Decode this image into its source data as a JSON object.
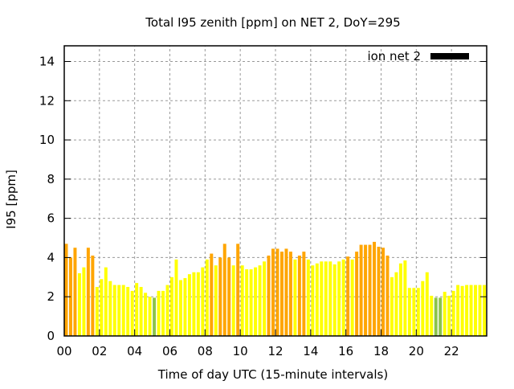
{
  "chart_data": {
    "type": "bar",
    "title": "Total I95 zenith [ppm] on NET 2, DoY=295",
    "xlabel": "Time of day UTC (15-minute intervals)",
    "ylabel": "I95 [ppm]",
    "xlim": [
      0,
      24
    ],
    "ylim": [
      0,
      14.8
    ],
    "xticks": [
      "00",
      "02",
      "04",
      "06",
      "08",
      "10",
      "12",
      "14",
      "16",
      "18",
      "20",
      "22"
    ],
    "yticks": [
      "0",
      "2",
      "4",
      "6",
      "8",
      "10",
      "12",
      "14"
    ],
    "grid": true,
    "legend": {
      "label": "ion net 2",
      "placement": "top-right"
    },
    "interval_hours": 0.25,
    "colors": {
      "high": "#ffa500",
      "mid": "#ffff00",
      "low": "#8bc34a"
    },
    "values": [
      4.7,
      4.0,
      4.5,
      3.2,
      3.5,
      4.5,
      4.1,
      2.5,
      2.9,
      3.5,
      2.8,
      2.6,
      2.6,
      2.6,
      2.5,
      2.3,
      2.7,
      2.5,
      2.2,
      2.0,
      1.95,
      2.3,
      2.3,
      2.6,
      3.0,
      3.9,
      2.85,
      2.95,
      3.15,
      3.25,
      3.25,
      3.5,
      3.9,
      4.2,
      3.6,
      4.0,
      4.7,
      4.0,
      3.6,
      4.7,
      3.6,
      3.4,
      3.4,
      3.5,
      3.6,
      3.8,
      4.1,
      4.45,
      4.45,
      4.3,
      4.45,
      4.3,
      3.9,
      4.1,
      4.3,
      3.9,
      3.6,
      3.7,
      3.8,
      3.8,
      3.8,
      3.65,
      3.8,
      3.9,
      4.05,
      3.9,
      4.3,
      4.65,
      4.65,
      4.65,
      4.8,
      4.55,
      4.5,
      4.1,
      3.0,
      3.25,
      3.7,
      3.85,
      2.45,
      2.45,
      2.45,
      2.8,
      3.25,
      2.05,
      1.95,
      1.95,
      2.25,
      2.05,
      2.3,
      2.6,
      2.55,
      2.6,
      2.6,
      2.6,
      2.6,
      2.6
    ]
  }
}
